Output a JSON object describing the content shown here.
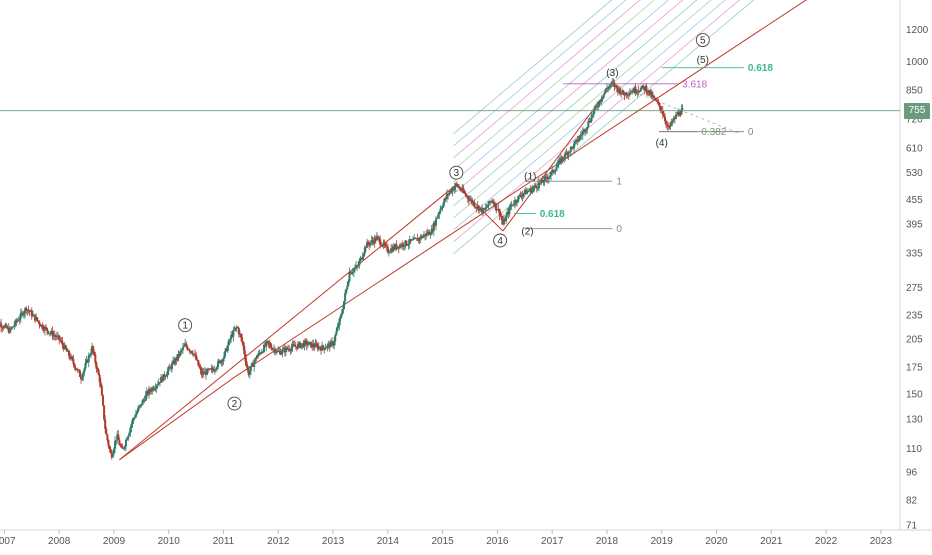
{
  "chart_data": {
    "type": "candlestick",
    "scale": "log",
    "grid": false,
    "x_range": [
      2006.92,
      2023.35
    ],
    "y_range": [
      69,
      1420
    ],
    "x_tick_labels": [
      "2007",
      "2008",
      "2009",
      "2010",
      "2011",
      "2012",
      "2013",
      "2014",
      "2015",
      "2016",
      "2017",
      "2018",
      "2019",
      "2020",
      "2021",
      "2022",
      "2023"
    ],
    "y_tick_labels": [
      1200,
      1000,
      850,
      720,
      610,
      530,
      455,
      395,
      335,
      275,
      235,
      205,
      175,
      150,
      130,
      110,
      96,
      82,
      71
    ],
    "last_price": 755,
    "last_price_label": "755",
    "price_series": [
      {
        "x": 2006.8,
        "y": 230
      },
      {
        "x": 2007.1,
        "y": 215
      },
      {
        "x": 2007.4,
        "y": 245
      },
      {
        "x": 2007.7,
        "y": 220
      },
      {
        "x": 2008.0,
        "y": 205
      },
      {
        "x": 2008.2,
        "y": 185
      },
      {
        "x": 2008.4,
        "y": 165
      },
      {
        "x": 2008.6,
        "y": 195
      },
      {
        "x": 2008.75,
        "y": 160
      },
      {
        "x": 2008.85,
        "y": 120
      },
      {
        "x": 2008.95,
        "y": 105
      },
      {
        "x": 2009.05,
        "y": 118
      },
      {
        "x": 2009.15,
        "y": 108
      },
      {
        "x": 2009.35,
        "y": 130
      },
      {
        "x": 2009.6,
        "y": 150
      },
      {
        "x": 2009.9,
        "y": 165
      },
      {
        "x": 2010.1,
        "y": 180
      },
      {
        "x": 2010.3,
        "y": 198
      },
      {
        "x": 2010.45,
        "y": 190
      },
      {
        "x": 2010.6,
        "y": 168
      },
      {
        "x": 2010.8,
        "y": 172
      },
      {
        "x": 2011.0,
        "y": 185
      },
      {
        "x": 2011.15,
        "y": 210
      },
      {
        "x": 2011.25,
        "y": 220
      },
      {
        "x": 2011.35,
        "y": 200
      },
      {
        "x": 2011.45,
        "y": 168
      },
      {
        "x": 2011.6,
        "y": 185
      },
      {
        "x": 2011.8,
        "y": 200
      },
      {
        "x": 2012.0,
        "y": 190
      },
      {
        "x": 2012.2,
        "y": 195
      },
      {
        "x": 2012.5,
        "y": 200
      },
      {
        "x": 2012.8,
        "y": 195
      },
      {
        "x": 2013.0,
        "y": 200
      },
      {
        "x": 2013.15,
        "y": 235
      },
      {
        "x": 2013.3,
        "y": 300
      },
      {
        "x": 2013.45,
        "y": 310
      },
      {
        "x": 2013.6,
        "y": 350
      },
      {
        "x": 2013.8,
        "y": 365
      },
      {
        "x": 2014.0,
        "y": 340
      },
      {
        "x": 2014.2,
        "y": 350
      },
      {
        "x": 2014.5,
        "y": 360
      },
      {
        "x": 2014.8,
        "y": 380
      },
      {
        "x": 2014.95,
        "y": 430
      },
      {
        "x": 2015.1,
        "y": 470
      },
      {
        "x": 2015.25,
        "y": 495
      },
      {
        "x": 2015.4,
        "y": 470
      },
      {
        "x": 2015.6,
        "y": 440
      },
      {
        "x": 2015.75,
        "y": 425
      },
      {
        "x": 2015.9,
        "y": 455
      },
      {
        "x": 2016.05,
        "y": 420
      },
      {
        "x": 2016.1,
        "y": 395
      },
      {
        "x": 2016.25,
        "y": 440
      },
      {
        "x": 2016.45,
        "y": 470
      },
      {
        "x": 2016.6,
        "y": 480
      },
      {
        "x": 2016.8,
        "y": 500
      },
      {
        "x": 2017.0,
        "y": 530
      },
      {
        "x": 2017.2,
        "y": 580
      },
      {
        "x": 2017.4,
        "y": 620
      },
      {
        "x": 2017.6,
        "y": 680
      },
      {
        "x": 2017.8,
        "y": 770
      },
      {
        "x": 2018.0,
        "y": 860
      },
      {
        "x": 2018.1,
        "y": 880
      },
      {
        "x": 2018.3,
        "y": 830
      },
      {
        "x": 2018.5,
        "y": 850
      },
      {
        "x": 2018.7,
        "y": 860
      },
      {
        "x": 2018.85,
        "y": 810
      },
      {
        "x": 2019.0,
        "y": 760
      },
      {
        "x": 2019.12,
        "y": 680
      },
      {
        "x": 2019.2,
        "y": 710
      },
      {
        "x": 2019.3,
        "y": 745
      },
      {
        "x": 2019.38,
        "y": 755
      }
    ],
    "wave_labels": [
      {
        "label": "1",
        "x": 2010.3,
        "y": 222,
        "style": "circle"
      },
      {
        "label": "2",
        "x": 2011.2,
        "y": 142,
        "style": "circle"
      },
      {
        "label": "3",
        "x": 2015.25,
        "y": 530,
        "style": "circle"
      },
      {
        "label": "4",
        "x": 2016.05,
        "y": 360,
        "style": "circle"
      },
      {
        "label": "5",
        "x": 2019.75,
        "y": 1130,
        "style": "circle"
      },
      {
        "label": "(1)",
        "x": 2016.6,
        "y": 520,
        "style": "paren"
      },
      {
        "label": "(2)",
        "x": 2016.55,
        "y": 380,
        "style": "paren"
      },
      {
        "label": "(3)",
        "x": 2018.1,
        "y": 940,
        "style": "paren"
      },
      {
        "label": "(4)",
        "x": 2019.0,
        "y": 630,
        "style": "paren"
      },
      {
        "label": "(5)",
        "x": 2019.75,
        "y": 1010,
        "style": "paren"
      }
    ],
    "levels": [
      {
        "label": "0.618",
        "x1": 2019.0,
        "x2": 2020.5,
        "y": 965,
        "color": "#3bb88f",
        "bold": true
      },
      {
        "label": "3.618",
        "x1": 2017.2,
        "x2": 2019.3,
        "y": 880,
        "color": "#c060c0",
        "bold": false
      },
      {
        "label": "0.382",
        "x1": 2018.95,
        "x2": 2019.65,
        "y": 670,
        "color": "#6fa078",
        "bold": false
      },
      {
        "label": "0",
        "x1": 2018.95,
        "x2": 2020.5,
        "y": 670,
        "color": "#888888",
        "bold": false
      },
      {
        "label": "0",
        "x1": 2016.5,
        "x2": 2016.65,
        "y": 505,
        "color": "#888888",
        "bold": false
      },
      {
        "label": "1",
        "x1": 2016.5,
        "x2": 2018.1,
        "y": 505,
        "color": "#888888",
        "bold": false
      },
      {
        "label": "0.618",
        "x1": 2016.3,
        "x2": 2016.7,
        "y": 420,
        "color": "#3bb88f",
        "bold": true
      },
      {
        "label": "0",
        "x1": 2016.5,
        "x2": 2018.1,
        "y": 385,
        "color": "#888888",
        "bold": false
      }
    ]
  }
}
